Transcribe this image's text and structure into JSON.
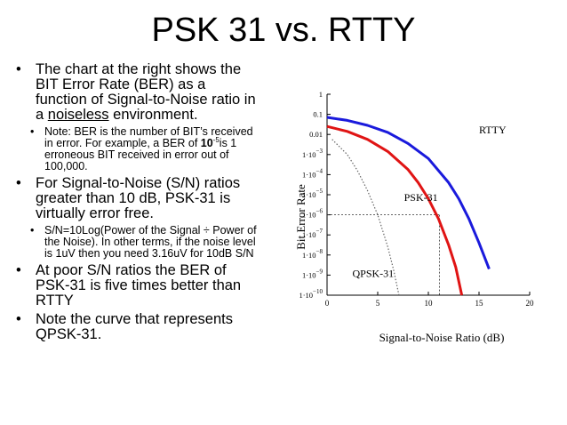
{
  "slide": {
    "title": "PSK 31 vs. RTTY",
    "bullets": [
      {
        "pre": "The chart at the right shows the BIT Error Rate (BER) as a function of Signal-to-Noise ratio in a ",
        "underlined": "noiseless",
        "post": " environment.",
        "sub": [
          {
            "pre": "Note: BER is the number of BIT’s received in error.  For example, a BER of ",
            "bold": "10",
            "sup": "-5",
            "post": "is 1 erroneous BIT received in error out of 100,000."
          }
        ]
      },
      {
        "text": "For Signal-to-Noise (S/N) ratios greater than 10 dB, PSK-31 is virtually error free.",
        "sub": [
          {
            "text": "S/N=10Log(Power of the Signal ÷ Power of the Noise).  In other terms, if the noise level is 1uV then you need 3.16uV for 10dB S/N"
          }
        ]
      },
      {
        "text": "At poor S/N ratios the BER of PSK-31 is five times better than RTTY"
      },
      {
        "text": "Note the curve that represents QPSK-31."
      }
    ]
  },
  "chart_data": {
    "type": "line",
    "xlabel": "Signal-to-Noise Ratio (dB)",
    "ylabel": "Bit Error Rate",
    "xlim": [
      0,
      20
    ],
    "ylim_log10": [
      -10,
      0
    ],
    "x_ticks": [
      "0",
      "5",
      "10",
      "15",
      "20"
    ],
    "y_ticks": [
      {
        "base": "1",
        "exp": ""
      },
      {
        "base": "0.1",
        "exp": ""
      },
      {
        "base": "0.01",
        "exp": ""
      },
      {
        "base": "1·10",
        "exp": "−3"
      },
      {
        "base": "1·10",
        "exp": "−4"
      },
      {
        "base": "1·10",
        "exp": "−5"
      },
      {
        "base": "1·10",
        "exp": "−6"
      },
      {
        "base": "1·10",
        "exp": "−7"
      },
      {
        "base": "1·10",
        "exp": "−8"
      },
      {
        "base": "1·10",
        "exp": "−9"
      },
      {
        "base": "1·10",
        "exp": "−10"
      }
    ],
    "series": [
      {
        "name": "RTTY",
        "color": "#1a1adc",
        "style": "solid",
        "x": [
          0,
          2,
          4,
          6,
          8,
          10,
          12,
          13,
          14,
          15,
          16
        ],
        "log10_y": [
          -1.15,
          -1.3,
          -1.55,
          -1.9,
          -2.45,
          -3.2,
          -4.4,
          -5.2,
          -6.2,
          -7.4,
          -8.7
        ]
      },
      {
        "name": "PSK-31",
        "color": "#e01414",
        "style": "solid",
        "x": [
          0,
          2,
          4,
          6,
          8,
          9,
          10,
          11,
          12,
          12.7,
          13.3
        ],
        "log10_y": [
          -1.6,
          -1.85,
          -2.25,
          -2.85,
          -3.75,
          -4.4,
          -5.2,
          -6.2,
          -7.5,
          -8.6,
          -10
        ]
      },
      {
        "name": "QPSK-31",
        "color": "#666666",
        "style": "dotted",
        "x": [
          0.5,
          2,
          3,
          4,
          5,
          6,
          6.6,
          7.1
        ],
        "log10_y": [
          -2.25,
          -3.0,
          -3.8,
          -4.8,
          -6.0,
          -7.6,
          -8.8,
          -10
        ]
      }
    ],
    "annotations": [
      {
        "text": "RTTY",
        "x": 15,
        "log10_y": -1.95
      },
      {
        "text": "PSK-31",
        "x": 7.6,
        "log10_y": -5.3
      },
      {
        "text": "QPSK-31",
        "x": 2.5,
        "log10_y": -9.1
      }
    ],
    "reference_lines": [
      {
        "from": [
          0,
          -6
        ],
        "to": [
          11.1,
          -6
        ]
      },
      {
        "from": [
          11.1,
          -6
        ],
        "to": [
          11.1,
          -10
        ]
      }
    ]
  }
}
